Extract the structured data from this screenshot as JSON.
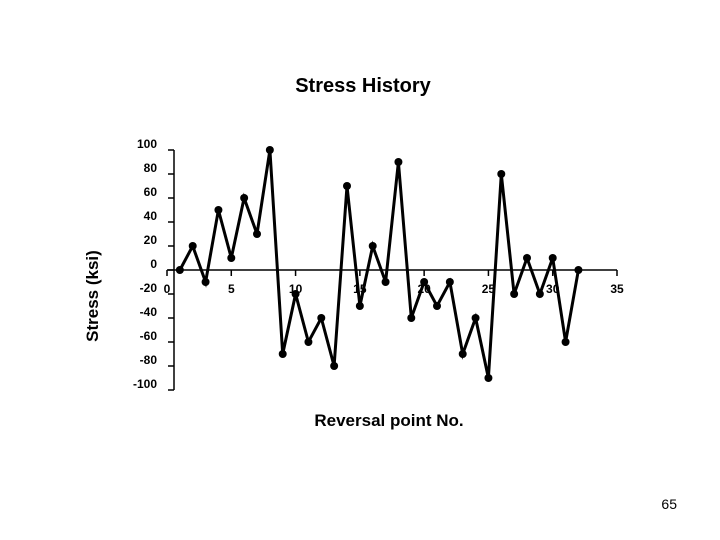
{
  "page": {
    "number": "65"
  },
  "chart_data": {
    "type": "line",
    "title": "Stress History",
    "xlabel": "Reversal point No.",
    "ylabel": "Stress (ksi)",
    "xlim": [
      0,
      35
    ],
    "ylim": [
      -100,
      100
    ],
    "xticks": [
      0,
      5,
      10,
      15,
      20,
      25,
      30,
      35
    ],
    "yticks": [
      100,
      80,
      60,
      40,
      20,
      0,
      -20,
      -40,
      -60,
      -80,
      -100
    ],
    "xtick_labels": [
      "0",
      "5",
      "10",
      "15",
      "20",
      "25",
      "30",
      "35"
    ],
    "ytick_labels": [
      "100",
      "80",
      "60",
      "40",
      "20",
      "0",
      "-20",
      "-40",
      "-60",
      "-80",
      "-100"
    ],
    "series": [
      {
        "name": "Stress",
        "x": [
          1,
          2,
          3,
          4,
          5,
          6,
          7,
          8,
          9,
          10,
          11,
          12,
          13,
          14,
          15,
          16,
          17,
          18,
          19,
          20,
          21,
          22,
          23,
          24,
          25,
          26,
          27,
          28,
          29,
          30,
          31,
          32
        ],
        "values": [
          0,
          20,
          -10,
          50,
          10,
          60,
          30,
          100,
          -70,
          -20,
          -60,
          -40,
          -80,
          70,
          -30,
          20,
          -10,
          90,
          -40,
          -10,
          -30,
          -10,
          -70,
          -40,
          -90,
          80,
          -20,
          10,
          -20,
          10,
          -60,
          0
        ]
      }
    ],
    "colors": {
      "line": "#000000",
      "marker": "#000000",
      "axis": "#000000"
    }
  }
}
